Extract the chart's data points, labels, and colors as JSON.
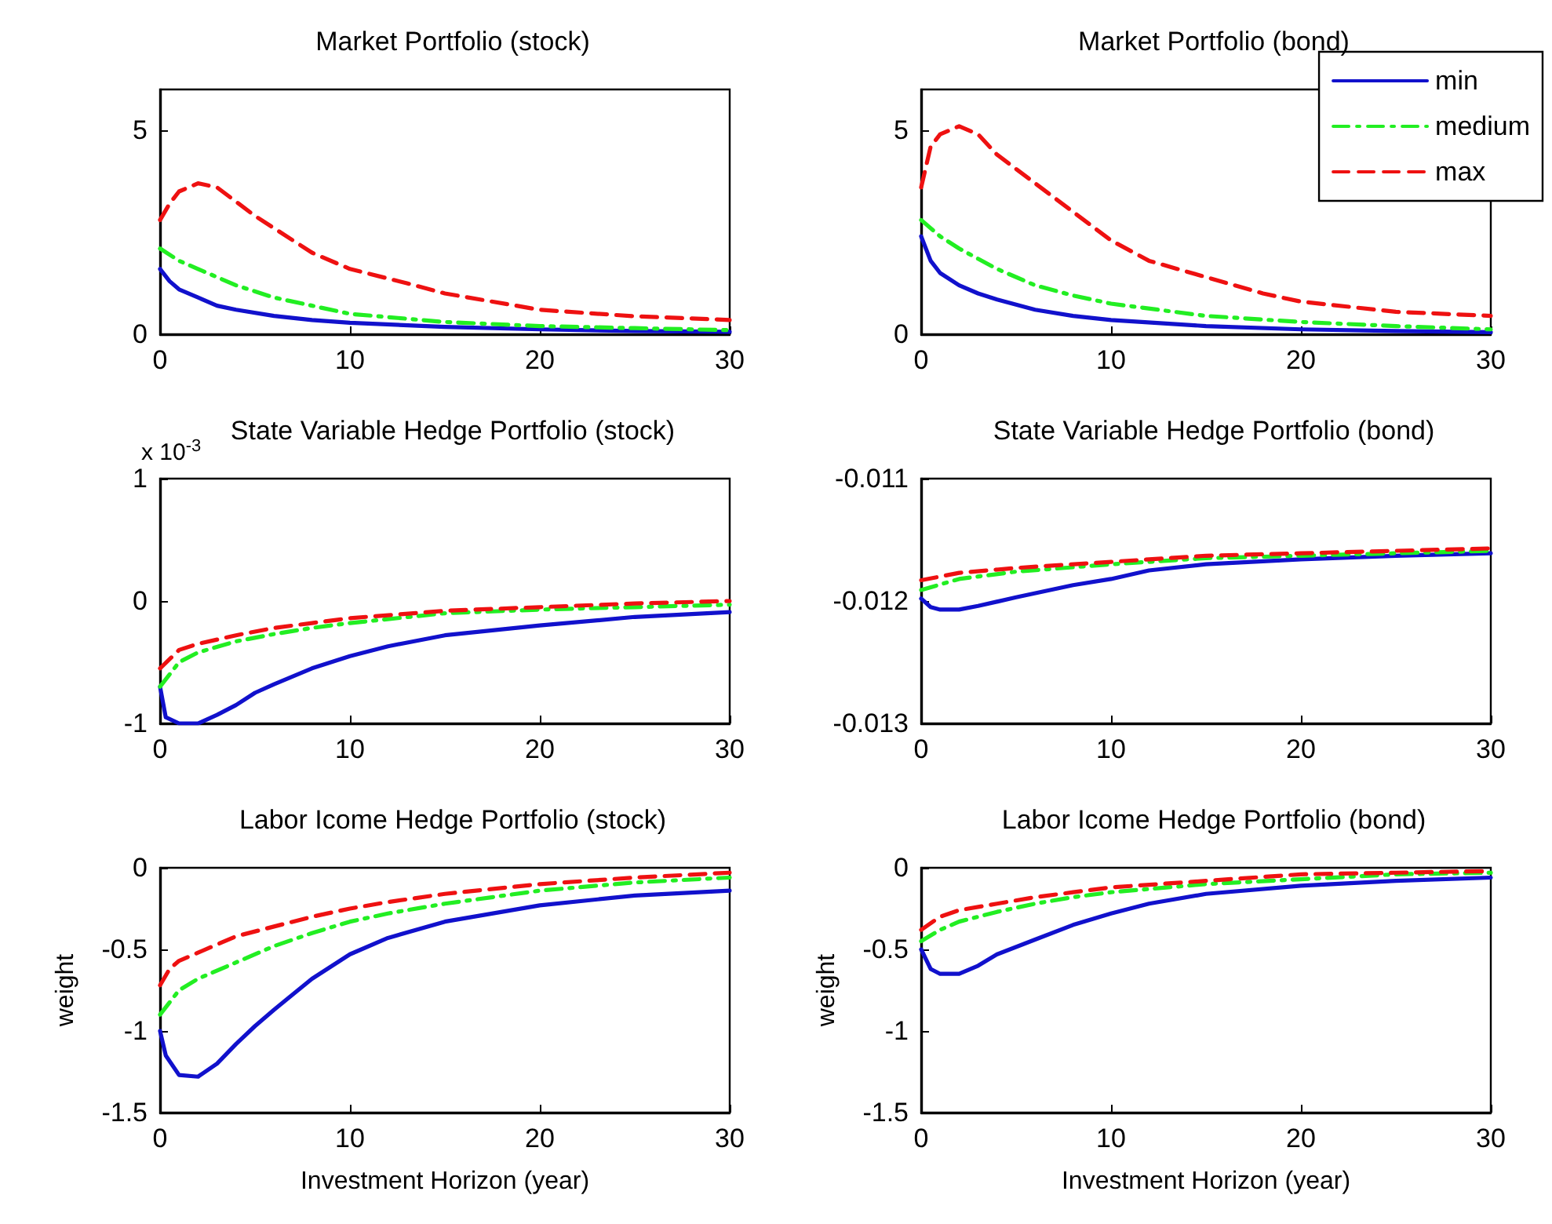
{
  "chart_data": [
    {
      "type": "line",
      "title": "Market Portfolio (stock)",
      "xlim": [
        0,
        30
      ],
      "xticks": [
        0,
        10,
        20,
        30
      ],
      "ylim": [
        0,
        6
      ],
      "yticks": [
        0,
        5
      ],
      "grid": false,
      "series": [
        {
          "color": "#1111cc",
          "line_style": "solid",
          "x": [
            0,
            0.5,
            1,
            2,
            3,
            4,
            6,
            8,
            10,
            15,
            20,
            25,
            30
          ],
          "values": [
            1.6,
            1.3,
            1.1,
            0.9,
            0.7,
            0.6,
            0.45,
            0.35,
            0.28,
            0.18,
            0.12,
            0.08,
            0.06
          ]
        },
        {
          "color": "#22ee22",
          "line_style": "dashdot",
          "x": [
            0,
            1,
            2,
            4,
            6,
            8,
            10,
            15,
            20,
            25,
            30
          ],
          "values": [
            2.1,
            1.8,
            1.6,
            1.2,
            0.9,
            0.7,
            0.5,
            0.3,
            0.2,
            0.15,
            0.1
          ]
        },
        {
          "color": "#ee1111",
          "line_style": "dashed",
          "x": [
            0,
            0.5,
            1,
            2,
            3,
            5,
            8,
            10,
            13,
            15,
            20,
            25,
            30
          ],
          "values": [
            2.8,
            3.2,
            3.5,
            3.7,
            3.6,
            2.9,
            2.0,
            1.6,
            1.25,
            1.0,
            0.6,
            0.44,
            0.35
          ]
        }
      ]
    },
    {
      "type": "line",
      "title": "Market Portfolio (bond)",
      "xlim": [
        0,
        30
      ],
      "xticks": [
        0,
        10,
        20,
        30
      ],
      "ylim": [
        0,
        6
      ],
      "yticks": [
        0,
        5
      ],
      "grid": false,
      "legend": "top right",
      "series": [
        {
          "name": "min",
          "color": "#1111cc",
          "line_style": "solid",
          "x": [
            0,
            0.5,
            1,
            2,
            3,
            4,
            6,
            8,
            10,
            15,
            20,
            25,
            30
          ],
          "values": [
            2.4,
            1.8,
            1.5,
            1.2,
            1.0,
            0.85,
            0.6,
            0.45,
            0.35,
            0.2,
            0.12,
            0.08,
            0.05
          ]
        },
        {
          "name": "medium",
          "color": "#22ee22",
          "line_style": "dashdot",
          "x": [
            0,
            1,
            2,
            4,
            6,
            8,
            10,
            15,
            20,
            25,
            30
          ],
          "values": [
            2.8,
            2.4,
            2.1,
            1.6,
            1.2,
            0.95,
            0.75,
            0.45,
            0.3,
            0.2,
            0.12
          ]
        },
        {
          "name": "max",
          "color": "#ee1111",
          "line_style": "dashed",
          "x": [
            0,
            0.5,
            1,
            2,
            3,
            4,
            6,
            8,
            10,
            12,
            15,
            18,
            20,
            25,
            30
          ],
          "values": [
            3.6,
            4.6,
            4.9,
            5.1,
            4.9,
            4.4,
            3.7,
            3.0,
            2.3,
            1.8,
            1.4,
            1.0,
            0.8,
            0.55,
            0.45
          ]
        }
      ]
    },
    {
      "type": "line",
      "title": "State Variable Hedge Portfolio (stock)",
      "xlim": [
        0,
        30
      ],
      "xticks": [
        0,
        10,
        20,
        30
      ],
      "ylim": [
        -1,
        1
      ],
      "yticks": [
        -1,
        0,
        1
      ],
      "grid": false,
      "annotations": [
        "x 10$^{-3}$"
      ],
      "series": [
        {
          "color": "#1111cc",
          "line_style": "solid",
          "x": [
            0,
            0.3,
            1,
            2,
            3,
            4,
            5,
            6,
            8,
            10,
            12,
            15,
            20,
            25,
            30
          ],
          "values": [
            -0.7,
            -0.95,
            -1.0,
            -1.0,
            -0.93,
            -0.85,
            -0.75,
            -0.68,
            -0.55,
            -0.45,
            -0.37,
            -0.28,
            -0.2,
            -0.13,
            -0.09
          ]
        },
        {
          "color": "#22ee22",
          "line_style": "dashdot",
          "x": [
            0,
            1,
            2,
            4,
            6,
            8,
            10,
            15,
            20,
            25,
            30
          ],
          "values": [
            -0.7,
            -0.5,
            -0.42,
            -0.33,
            -0.27,
            -0.22,
            -0.18,
            -0.1,
            -0.07,
            -0.05,
            -0.03
          ]
        },
        {
          "color": "#ee1111",
          "line_style": "dashed",
          "x": [
            0,
            1,
            2,
            4,
            6,
            8,
            10,
            15,
            20,
            25,
            30
          ],
          "values": [
            -0.55,
            -0.4,
            -0.35,
            -0.28,
            -0.22,
            -0.18,
            -0.14,
            -0.08,
            -0.05,
            -0.02,
            0.0
          ]
        }
      ]
    },
    {
      "type": "line",
      "title": "State Variable Hedge Portfolio (bond)",
      "xlim": [
        0,
        30
      ],
      "xticks": [
        0,
        10,
        20,
        30
      ],
      "ylim": [
        -0.013,
        -0.011
      ],
      "yticks": [
        -0.013,
        -0.012,
        -0.011
      ],
      "grid": false,
      "series": [
        {
          "color": "#1111cc",
          "line_style": "solid",
          "x": [
            0,
            0.5,
            1,
            2,
            3,
            5,
            8,
            10,
            12,
            15,
            20,
            25,
            30
          ],
          "values": [
            -0.01198,
            -0.01205,
            -0.01207,
            -0.01207,
            -0.01204,
            -0.01197,
            -0.01187,
            -0.01182,
            -0.01175,
            -0.0117,
            -0.01166,
            -0.01163,
            -0.01161
          ]
        },
        {
          "color": "#22ee22",
          "line_style": "dashdot",
          "x": [
            0,
            2,
            5,
            10,
            15,
            20,
            25,
            30
          ],
          "values": [
            -0.01191,
            -0.01182,
            -0.01176,
            -0.0117,
            -0.01165,
            -0.01163,
            -0.01161,
            -0.01159
          ]
        },
        {
          "color": "#ee1111",
          "line_style": "dashed",
          "x": [
            0,
            2,
            5,
            10,
            15,
            20,
            25,
            30
          ],
          "values": [
            -0.01183,
            -0.01177,
            -0.01173,
            -0.01168,
            -0.01163,
            -0.01161,
            -0.01159,
            -0.01157
          ]
        }
      ]
    },
    {
      "type": "line",
      "title": "Labor Icome Hedge Portfolio (stock)",
      "xlabel": "Investment Horizon (year)",
      "ylabel": "weight",
      "xlim": [
        0,
        30
      ],
      "xticks": [
        0,
        10,
        20,
        30
      ],
      "ylim": [
        -1.5,
        0
      ],
      "yticks": [
        -1.5,
        -1,
        -0.5,
        0
      ],
      "grid": false,
      "series": [
        {
          "color": "#1111cc",
          "line_style": "solid",
          "x": [
            0,
            0.3,
            1,
            2,
            3,
            4,
            5,
            6,
            8,
            10,
            12,
            15,
            20,
            25,
            30
          ],
          "values": [
            -1.0,
            -1.15,
            -1.27,
            -1.28,
            -1.2,
            -1.08,
            -0.97,
            -0.87,
            -0.68,
            -0.53,
            -0.43,
            -0.33,
            -0.23,
            -0.17,
            -0.14
          ]
        },
        {
          "color": "#22ee22",
          "line_style": "dashdot",
          "x": [
            0,
            1,
            2,
            4,
            6,
            8,
            10,
            12,
            15,
            20,
            25,
            30
          ],
          "values": [
            -0.9,
            -0.75,
            -0.68,
            -0.58,
            -0.48,
            -0.4,
            -0.33,
            -0.28,
            -0.22,
            -0.14,
            -0.09,
            -0.06
          ]
        },
        {
          "color": "#ee1111",
          "line_style": "dashed",
          "x": [
            0,
            0.5,
            1,
            2,
            4,
            6,
            8,
            10,
            12,
            15,
            20,
            25,
            30
          ],
          "values": [
            -0.72,
            -0.62,
            -0.57,
            -0.52,
            -0.42,
            -0.36,
            -0.3,
            -0.25,
            -0.21,
            -0.16,
            -0.1,
            -0.06,
            -0.03
          ]
        }
      ]
    },
    {
      "type": "line",
      "title": "Labor Icome Hedge Portfolio (bond)",
      "xlabel": "Investment Horizon (year)",
      "ylabel": "weight",
      "xlim": [
        0,
        30
      ],
      "xticks": [
        0,
        10,
        20,
        30
      ],
      "ylim": [
        -1.5,
        0
      ],
      "yticks": [
        -1.5,
        -1,
        -0.5,
        0
      ],
      "grid": false,
      "series": [
        {
          "color": "#1111cc",
          "line_style": "solid",
          "x": [
            0,
            0.5,
            1,
            2,
            3,
            4,
            6,
            8,
            10,
            12,
            15,
            20,
            25,
            30
          ],
          "values": [
            -0.5,
            -0.62,
            -0.65,
            -0.65,
            -0.6,
            -0.53,
            -0.44,
            -0.35,
            -0.28,
            -0.22,
            -0.16,
            -0.11,
            -0.08,
            -0.06
          ]
        },
        {
          "color": "#22ee22",
          "line_style": "dashdot",
          "x": [
            0,
            1,
            2,
            4,
            6,
            8,
            10,
            15,
            20,
            25,
            30
          ],
          "values": [
            -0.45,
            -0.38,
            -0.33,
            -0.27,
            -0.22,
            -0.18,
            -0.15,
            -0.1,
            -0.07,
            -0.04,
            -0.03
          ]
        },
        {
          "color": "#ee1111",
          "line_style": "dashed",
          "x": [
            0,
            1,
            2,
            4,
            6,
            8,
            10,
            15,
            20,
            25,
            30
          ],
          "values": [
            -0.38,
            -0.3,
            -0.26,
            -0.22,
            -0.18,
            -0.15,
            -0.12,
            -0.08,
            -0.04,
            -0.03,
            -0.02
          ]
        }
      ]
    }
  ]
}
